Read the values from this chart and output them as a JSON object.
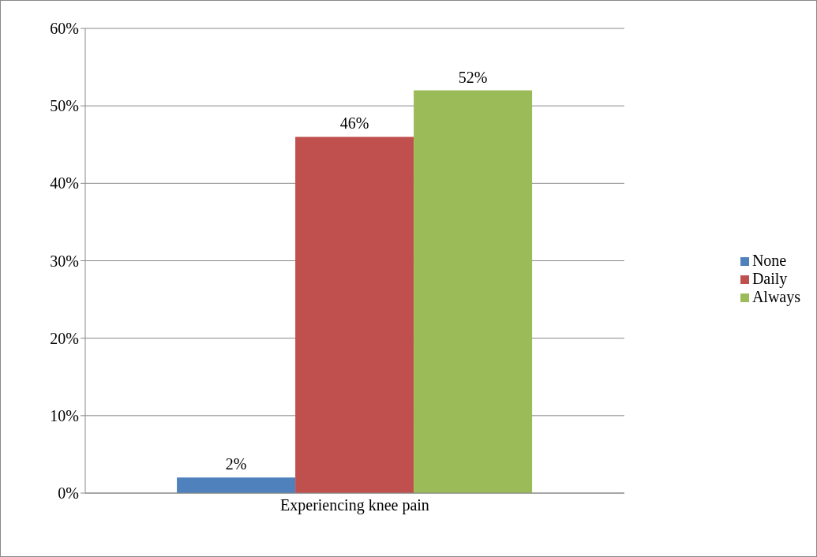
{
  "chart_data": {
    "type": "bar",
    "categories": [
      "Experiencing knee pain"
    ],
    "series": [
      {
        "name": "None",
        "color": "#4f81bd",
        "values": [
          2
        ],
        "value_labels": [
          "2%"
        ]
      },
      {
        "name": "Daily",
        "color": "#c0504d",
        "values": [
          46
        ],
        "value_labels": [
          "46%"
        ]
      },
      {
        "name": "Always",
        "color": "#9bbb59",
        "values": [
          52
        ],
        "value_labels": [
          "52%"
        ]
      }
    ],
    "ylim": [
      0,
      60
    ],
    "yticks": [
      {
        "value": 0,
        "label": "0%"
      },
      {
        "value": 10,
        "label": "10%"
      },
      {
        "value": 20,
        "label": "20%"
      },
      {
        "value": 30,
        "label": "30%"
      },
      {
        "value": 40,
        "label": "40%"
      },
      {
        "value": 50,
        "label": "50%"
      },
      {
        "value": 60,
        "label": "60%"
      }
    ],
    "grid": "y",
    "legend": "right"
  }
}
